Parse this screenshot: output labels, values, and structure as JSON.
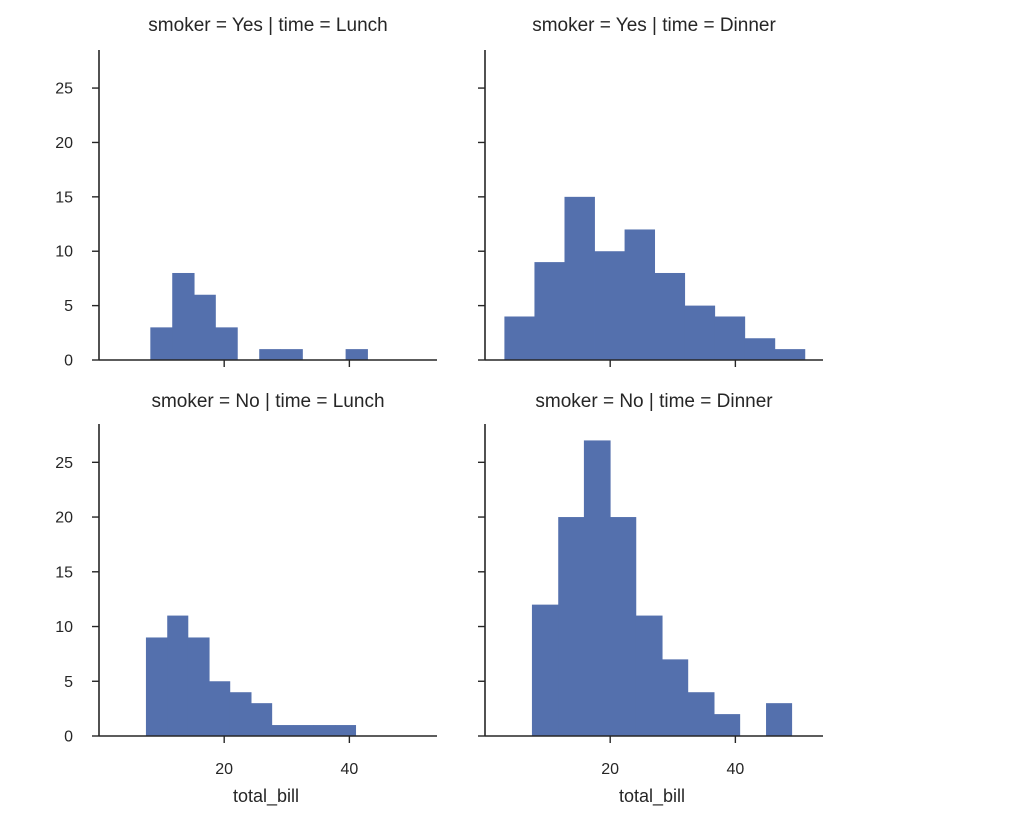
{
  "chart_data": {
    "type": "bar",
    "histtype": "histogram",
    "facets": {
      "rows": {
        "variable": "smoker",
        "values": [
          "Yes",
          "No"
        ]
      },
      "cols": {
        "variable": "time",
        "values": [
          "Lunch",
          "Dinner"
        ]
      }
    },
    "xlabel": "total_bill",
    "ylabel": "",
    "xlim": [
      0,
      54
    ],
    "ylim": [
      0,
      28.5
    ],
    "xticks": [
      20,
      40
    ],
    "yticks": [
      0,
      5,
      10,
      15,
      20,
      25
    ],
    "color": "#5470ad",
    "grid": false,
    "panels": [
      {
        "title": "smoker = Yes | time = Lunch",
        "bins": [
          {
            "x0": 8.2,
            "x1": 11.7,
            "count": 3
          },
          {
            "x0": 11.7,
            "x1": 15.2,
            "count": 8
          },
          {
            "x0": 15.2,
            "x1": 18.6,
            "count": 6
          },
          {
            "x0": 18.6,
            "x1": 22.1,
            "count": 3
          },
          {
            "x0": 22.1,
            "x1": 25.6,
            "count": 0
          },
          {
            "x0": 25.6,
            "x1": 29.0,
            "count": 1
          },
          {
            "x0": 29.0,
            "x1": 32.5,
            "count": 1
          },
          {
            "x0": 32.5,
            "x1": 36.0,
            "count": 0
          },
          {
            "x0": 36.0,
            "x1": 39.4,
            "count": 0
          },
          {
            "x0": 39.4,
            "x1": 42.9,
            "count": 1
          }
        ]
      },
      {
        "title": "smoker = Yes | time = Dinner",
        "bins": [
          {
            "x0": 3.1,
            "x1": 7.9,
            "count": 4
          },
          {
            "x0": 7.9,
            "x1": 12.7,
            "count": 9
          },
          {
            "x0": 12.7,
            "x1": 17.5,
            "count": 15
          },
          {
            "x0": 17.5,
            "x1": 22.3,
            "count": 10
          },
          {
            "x0": 22.3,
            "x1": 27.1,
            "count": 12
          },
          {
            "x0": 27.1,
            "x1": 31.9,
            "count": 8
          },
          {
            "x0": 31.9,
            "x1": 36.7,
            "count": 5
          },
          {
            "x0": 36.7,
            "x1": 41.5,
            "count": 4
          },
          {
            "x0": 41.5,
            "x1": 46.3,
            "count": 2
          },
          {
            "x0": 46.3,
            "x1": 51.1,
            "count": 1
          }
        ]
      },
      {
        "title": "smoker = No | time = Lunch",
        "bins": [
          {
            "x0": 7.5,
            "x1": 10.9,
            "count": 9
          },
          {
            "x0": 10.9,
            "x1": 14.2,
            "count": 11
          },
          {
            "x0": 14.2,
            "x1": 17.6,
            "count": 9
          },
          {
            "x0": 17.6,
            "x1": 20.9,
            "count": 5
          },
          {
            "x0": 20.9,
            "x1": 24.3,
            "count": 4
          },
          {
            "x0": 24.3,
            "x1": 27.6,
            "count": 3
          },
          {
            "x0": 27.6,
            "x1": 31.0,
            "count": 1
          },
          {
            "x0": 31.0,
            "x1": 34.3,
            "count": 1
          },
          {
            "x0": 34.3,
            "x1": 37.7,
            "count": 1
          },
          {
            "x0": 37.7,
            "x1": 41.0,
            "count": 1
          }
        ]
      },
      {
        "title": "smoker = No | time = Dinner",
        "bins": [
          {
            "x0": 7.5,
            "x1": 11.7,
            "count": 12
          },
          {
            "x0": 11.7,
            "x1": 15.8,
            "count": 20
          },
          {
            "x0": 15.8,
            "x1": 20.0,
            "count": 27
          },
          {
            "x0": 20.0,
            "x1": 24.1,
            "count": 20
          },
          {
            "x0": 24.1,
            "x1": 28.3,
            "count": 11
          },
          {
            "x0": 28.3,
            "x1": 32.4,
            "count": 7
          },
          {
            "x0": 32.4,
            "x1": 36.6,
            "count": 4
          },
          {
            "x0": 36.6,
            "x1": 40.7,
            "count": 2
          },
          {
            "x0": 40.7,
            "x1": 44.9,
            "count": 0
          },
          {
            "x0": 44.9,
            "x1": 49.0,
            "count": 3
          }
        ]
      }
    ]
  }
}
